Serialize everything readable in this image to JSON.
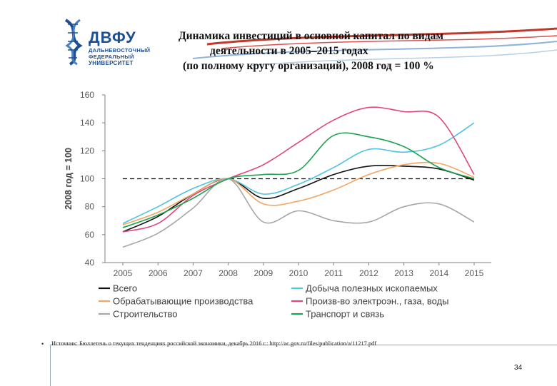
{
  "logo": {
    "name": "ДВФУ",
    "line1": "ДАЛЬНЕВОСТОЧНЫЙ",
    "line2": "ФЕДЕРАЛЬНЫЙ",
    "line3": "УНИВЕРСИТЕТ",
    "colors": {
      "blue": "#1d4f91",
      "ribbon_red": "#c0392b",
      "ribbon_blue": "#8fb3d9"
    }
  },
  "title": {
    "line1": "Динамика инвестиций в основной капитал по видам",
    "line2": "деятельности в 2005–2015 годах",
    "line3": "(по полному кругу организаций), 2008 год = 100 %"
  },
  "chart_data": {
    "type": "line",
    "x": [
      "2005",
      "2006",
      "2007",
      "2008",
      "2009",
      "2010",
      "2011",
      "2012",
      "2013",
      "2014",
      "2015"
    ],
    "ylabel": "2008 год = 100",
    "ylim": [
      40,
      160
    ],
    "yticks": [
      "40",
      "60",
      "80",
      "100",
      "120",
      "140",
      "160"
    ],
    "grid": false,
    "legend_position": "bottom",
    "reference_line": {
      "value": 100,
      "style": "dashed",
      "color": "#111111"
    },
    "series": [
      {
        "name": "Всего",
        "color": "#111111",
        "values": [
          62,
          73,
          89,
          100,
          86,
          93,
          103,
          109,
          109,
          107,
          99
        ]
      },
      {
        "name": "Добыча полезных ископаемых",
        "color": "#4fc3e0",
        "values": [
          68,
          80,
          93,
          100,
          89,
          96,
          108,
          121,
          119,
          124,
          140
        ]
      },
      {
        "name": "Обрабатывающие производства",
        "color": "#f4a460",
        "values": [
          67,
          76,
          89,
          100,
          82,
          84,
          92,
          103,
          110,
          111,
          101
        ]
      },
      {
        "name": "Произв-во электроэн., газа, воды",
        "color": "#e0457b",
        "values": [
          62,
          68,
          88,
          100,
          110,
          126,
          142,
          151,
          148,
          144,
          103
        ]
      },
      {
        "name": "Строительство",
        "color": "#a6a6a6",
        "values": [
          51,
          61,
          79,
          100,
          69,
          77,
          70,
          69,
          80,
          82,
          69
        ]
      },
      {
        "name": "Транспорт и связь",
        "color": "#1aa350",
        "values": [
          65,
          74,
          86,
          100,
          103,
          106,
          131,
          130,
          123,
          108,
          100
        ]
      }
    ]
  },
  "source": "Источник: Бюллетень о текущих тенденциях российской экономики, декабрь 2016 г.: http://ac.gov.ru/files/publication/a/11217.pdf",
  "bullet": "•",
  "page_number": "34"
}
